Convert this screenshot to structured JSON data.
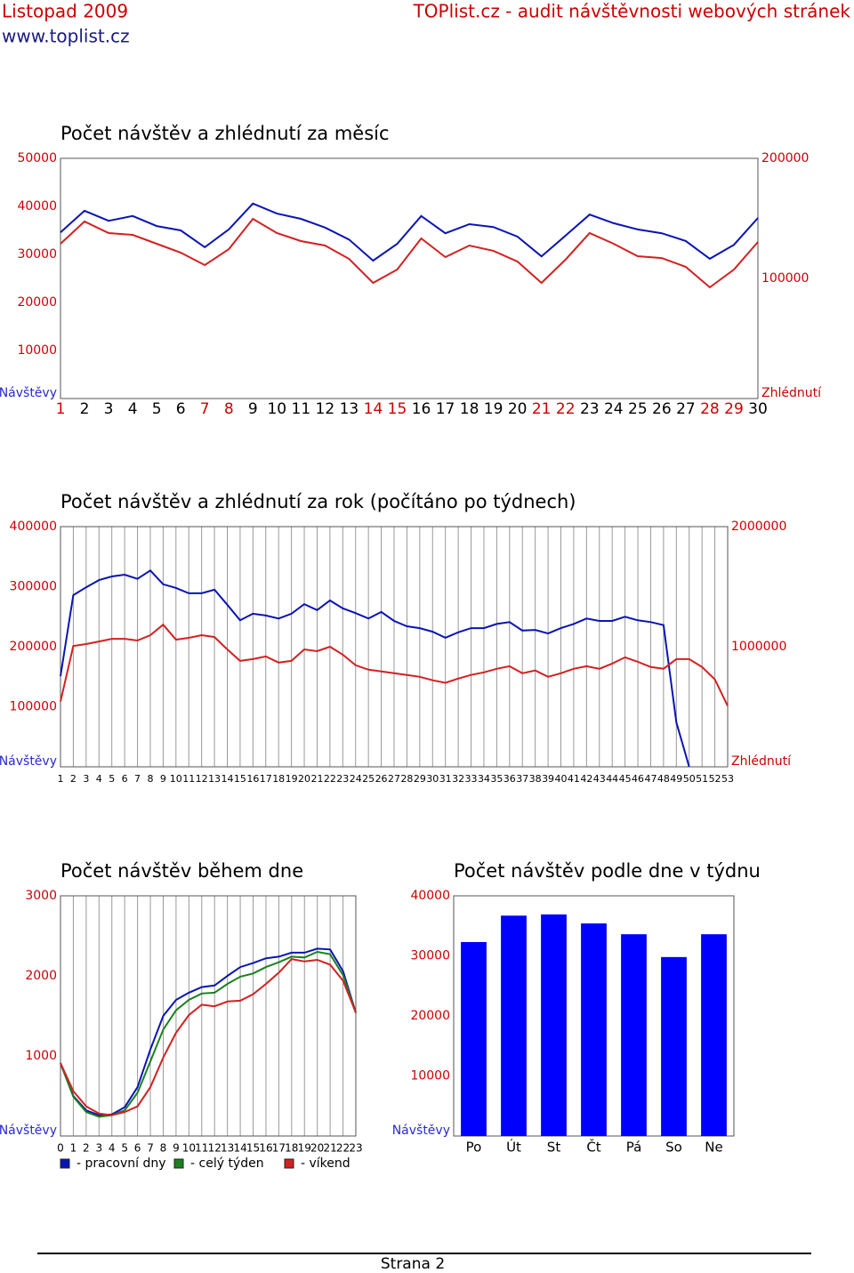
{
  "header": {
    "date": "Listopad 2009",
    "url": "www.toplist.cz",
    "title": "TOPlist.cz - audit návštěvnosti webových stránek"
  },
  "footer": {
    "page": "Strana 2"
  },
  "chart_data": [
    {
      "type": "line",
      "title": "Počet návštěv a zhlédnutí za měsíc",
      "ylabel": "Návštěvy",
      "y2label": "Zhlédnutí",
      "tick_color": "#cc0000",
      "ylabel_color": "#2a2ad0",
      "y2label_color": "#cc0000",
      "categories": [
        "1",
        "2",
        "3",
        "4",
        "5",
        "6",
        "7",
        "8",
        "9",
        "10",
        "11",
        "12",
        "13",
        "14",
        "15",
        "16",
        "17",
        "18",
        "19",
        "20",
        "21",
        "22",
        "23",
        "24",
        "25",
        "26",
        "27",
        "28",
        "29",
        "30"
      ],
      "category_colors": [
        "#cc0000",
        "#000000",
        "#000000",
        "#000000",
        "#000000",
        "#000000",
        "#cc0000",
        "#cc0000",
        "#000000",
        "#000000",
        "#000000",
        "#000000",
        "#000000",
        "#cc0000",
        "#cc0000",
        "#000000",
        "#000000",
        "#000000",
        "#000000",
        "#000000",
        "#cc0000",
        "#cc0000",
        "#000000",
        "#000000",
        "#000000",
        "#000000",
        "#000000",
        "#cc0000",
        "#cc0000",
        "#000000"
      ],
      "ylim": [
        0,
        50000
      ],
      "yticks": [
        10000,
        20000,
        30000,
        40000,
        50000
      ],
      "y2lim": [
        0,
        200000
      ],
      "y2ticks": [
        100000,
        200000
      ],
      "vgrid": false,
      "series": [
        {
          "color": "#0a14b4",
          "values": [
            34600,
            39100,
            37000,
            38000,
            35900,
            35000,
            31500,
            35200,
            40600,
            38500,
            37400,
            35600,
            33100,
            28700,
            32200,
            38000,
            34400,
            36300,
            35700,
            33700,
            29600,
            33900,
            38300,
            36500,
            35200,
            34400,
            32800,
            29100,
            32000,
            37600
          ]
        },
        {
          "color": "#d42020",
          "axis": "y2",
          "values": [
            128900,
            147400,
            137800,
            136300,
            128900,
            121500,
            111100,
            124400,
            149600,
            137800,
            131100,
            127400,
            116300,
            96300,
            107400,
            133300,
            117800,
            127400,
            123000,
            114100,
            96300,
            115600,
            137800,
            128900,
            118500,
            117000,
            109600,
            92600,
            107400,
            130400
          ]
        }
      ]
    },
    {
      "type": "line",
      "title": "Počet návštěv a zhlédnutí za rok (počítáno po týdnech)",
      "ylabel": "Návštěvy",
      "y2label": "Zhlédnutí",
      "tick_color": "#cc0000",
      "ylabel_color": "#2a2ad0",
      "y2label_color": "#cc0000",
      "categories": [
        "1",
        "2",
        "3",
        "4",
        "5",
        "6",
        "7",
        "8",
        "9",
        "10",
        "11",
        "12",
        "13",
        "14",
        "15",
        "16",
        "17",
        "18",
        "19",
        "20",
        "21",
        "22",
        "23",
        "24",
        "25",
        "26",
        "27",
        "28",
        "29",
        "30",
        "31",
        "32",
        "33",
        "34",
        "35",
        "36",
        "37",
        "38",
        "39",
        "40",
        "41",
        "42",
        "43",
        "44",
        "45",
        "46",
        "47",
        "48",
        "49",
        "50",
        "51",
        "52",
        "53"
      ],
      "ylim": [
        0,
        400000
      ],
      "yticks": [
        100000,
        200000,
        300000,
        400000
      ],
      "y2lim": [
        0,
        2000000
      ],
      "y2ticks": [
        1000000,
        2000000
      ],
      "vgrid": true,
      "series": [
        {
          "color": "#0a14b4",
          "values": [
            151000,
            286000,
            299000,
            311000,
            317000,
            320000,
            313000,
            327000,
            304000,
            298000,
            289000,
            289000,
            295000,
            270000,
            244000,
            255000,
            252000,
            247000,
            255000,
            271000,
            261000,
            277000,
            264000,
            256000,
            247000,
            258000,
            243000,
            234000,
            231000,
            225000,
            215000,
            224000,
            231000,
            231000,
            238000,
            241000,
            227000,
            228000,
            222000,
            231000,
            238000,
            247000,
            243000,
            243000,
            250000,
            244000,
            241000,
            236000,
            74000,
            0,
            null,
            null,
            null
          ]
        },
        {
          "color": "#d42020",
          "axis": "y2",
          "values": [
            544000,
            1007000,
            1022000,
            1044000,
            1066000,
            1066000,
            1052000,
            1096000,
            1184000,
            1059000,
            1074000,
            1096000,
            1081000,
            978000,
            882000,
            897000,
            919000,
            868000,
            882000,
            978000,
            963000,
            1000000,
            934000,
            846000,
            809000,
            794000,
            779000,
            765000,
            750000,
            721000,
            699000,
            735000,
            765000,
            787000,
            816000,
            838000,
            779000,
            802000,
            750000,
            779000,
            816000,
            838000,
            816000,
            860000,
            912000,
            875000,
            831000,
            816000,
            897000,
            897000,
            831000,
            728000,
            507000
          ]
        }
      ]
    },
    {
      "type": "line",
      "title": "Počet návštěv během dne",
      "ylabel": "Návštěvy",
      "tick_color": "#cc0000",
      "ylabel_color": "#2a2ad0",
      "categories": [
        "0",
        "1",
        "2",
        "3",
        "4",
        "5",
        "6",
        "7",
        "8",
        "9",
        "10",
        "11",
        "12",
        "13",
        "14",
        "15",
        "16",
        "17",
        "18",
        "19",
        "20",
        "21",
        "22",
        "23"
      ],
      "ylim": [
        0,
        3000
      ],
      "yticks": [
        1000,
        2000,
        3000
      ],
      "vgrid": true,
      "series": [
        {
          "name": "- pracovní dny",
          "color": "#0a14b4",
          "values": [
            910,
            500,
            320,
            260,
            270,
            360,
            610,
            1080,
            1500,
            1700,
            1790,
            1860,
            1880,
            2000,
            2110,
            2160,
            2220,
            2240,
            2290,
            2290,
            2340,
            2330,
            2060,
            1540
          ]
        },
        {
          "name": "- celý týden",
          "color": "#1a8020",
          "values": [
            910,
            490,
            300,
            240,
            260,
            320,
            540,
            930,
            1330,
            1570,
            1700,
            1780,
            1790,
            1900,
            1990,
            2030,
            2110,
            2170,
            2240,
            2230,
            2300,
            2270,
            2010,
            1540
          ]
        },
        {
          "name": "- víkend",
          "color": "#d42020",
          "values": [
            910,
            560,
            370,
            280,
            260,
            300,
            370,
            610,
            980,
            1290,
            1510,
            1640,
            1620,
            1680,
            1690,
            1770,
            1900,
            2040,
            2210,
            2180,
            2200,
            2140,
            1940,
            1540
          ]
        }
      ]
    },
    {
      "type": "bar",
      "title": "Počet návštěv podle dne v týdnu",
      "ylabel": "Návštěvy",
      "tick_color": "#cc0000",
      "ylabel_color": "#2a2ad0",
      "categories": [
        "Po",
        "Út",
        "St",
        "Čt",
        "Pá",
        "So",
        "Ne"
      ],
      "values": [
        32300,
        36700,
        36900,
        35400,
        33600,
        29800,
        33600
      ],
      "color": "#0000ff",
      "ylim": [
        0,
        40000
      ],
      "yticks": [
        10000,
        20000,
        30000,
        40000
      ],
      "vgrid": false
    }
  ]
}
